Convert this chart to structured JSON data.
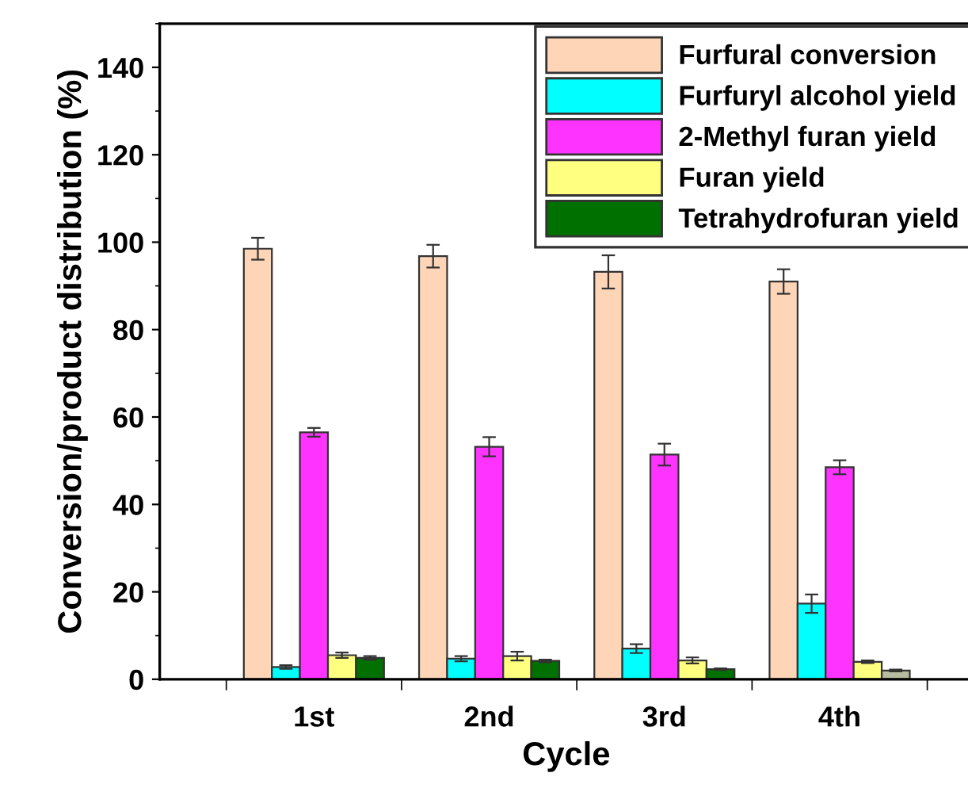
{
  "chart_data": {
    "type": "bar",
    "xlabel": "Cycle",
    "ylabel": "Conversion/product distribution (%)",
    "categories": [
      "1st",
      "2nd",
      "3rd",
      "4th"
    ],
    "series": [
      {
        "name": "Furfural conversion",
        "color": "#ffd5b8",
        "values": [
          98.5,
          96.8,
          93.2,
          91.0
        ],
        "errors": [
          2.5,
          2.6,
          3.8,
          2.8
        ]
      },
      {
        "name": "Furfuryl alcohol yield",
        "color": "#00ffff",
        "values": [
          2.8,
          4.7,
          7.0,
          17.3
        ],
        "errors": [
          0.4,
          0.6,
          1.0,
          2.1
        ]
      },
      {
        "name": "2-Methyl furan yield",
        "color": "#ff33ff",
        "values": [
          56.5,
          53.2,
          51.4,
          48.5
        ],
        "errors": [
          1.0,
          2.2,
          2.5,
          1.6
        ]
      },
      {
        "name": "Furan yield",
        "color": "#ffff80",
        "values": [
          5.5,
          5.3,
          4.3,
          4.0
        ],
        "errors": [
          0.6,
          1.0,
          0.7,
          0.3
        ]
      },
      {
        "name": "Tetrahydrofuran yield",
        "color": "#007000",
        "colors": [
          "#007000",
          "#007000",
          "#007000",
          "#b8bca0"
        ],
        "values": [
          4.9,
          4.2,
          2.3,
          2.0
        ],
        "errors": [
          0.4,
          0.3,
          0.2,
          0.2
        ]
      }
    ],
    "ylim": [
      0,
      150
    ],
    "yticks": [
      0,
      20,
      40,
      60,
      80,
      100,
      120,
      140
    ],
    "grid": false,
    "legend": "top right"
  }
}
